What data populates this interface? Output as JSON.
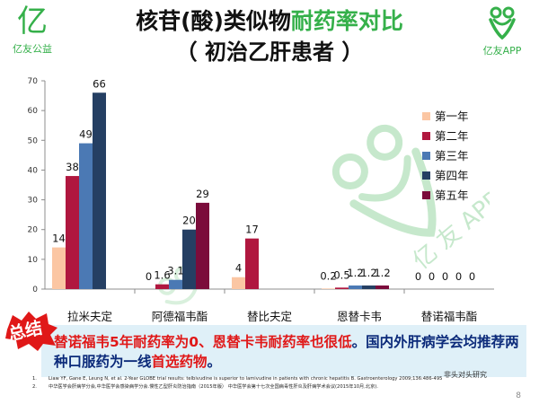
{
  "brand": {
    "left_glyph": "亿",
    "left_name": "亿友公益",
    "right_name": "亿友APP"
  },
  "title": {
    "line1_prefix": "核苷(酸)类似物",
    "line1_highlight": "耐药率对比",
    "line2": "（ 初治乙肝患者 ）"
  },
  "colors": {
    "title_green": "#35b04a",
    "summary_bg": "#dff0f8",
    "summary_text": "#0b2a7a",
    "summary_highlight": "#e01818",
    "badge_red": "#e01818"
  },
  "chart_data": {
    "type": "bar",
    "categories": [
      "拉米夫定",
      "阿德福韦酯",
      "替比夫定",
      "恩替卡韦",
      "替诺福韦酯"
    ],
    "series": [
      {
        "name": "第一年",
        "color": "#fbc6a3",
        "values": [
          14,
          0,
          4,
          0.2,
          0
        ],
        "labels": [
          "14",
          "0",
          "4",
          "0.2",
          "0"
        ]
      },
      {
        "name": "第二年",
        "color": "#b0173f",
        "values": [
          38,
          1.6,
          17,
          0.5,
          0
        ],
        "labels": [
          "38",
          "1.6",
          "17",
          "0.5",
          "0"
        ]
      },
      {
        "name": "第三年",
        "color": "#4b79b4",
        "values": [
          49,
          3.1,
          null,
          1.2,
          0
        ],
        "labels": [
          "49",
          "3.1",
          "",
          "1.2",
          "0"
        ]
      },
      {
        "name": "第四年",
        "color": "#253f63",
        "values": [
          66,
          20,
          null,
          1.2,
          0
        ],
        "labels": [
          "66",
          "20",
          "",
          "1.2",
          "0"
        ]
      },
      {
        "name": "第五年",
        "color": "#7b0c3b",
        "values": [
          null,
          29,
          null,
          1.2,
          0
        ],
        "labels": [
          "",
          "29",
          "",
          "1.2",
          "0"
        ]
      }
    ],
    "y_ticks": [
      "0",
      "10",
      "20",
      "30",
      "40",
      "50",
      "60",
      "70"
    ],
    "ylim": [
      0,
      70
    ],
    "grid": false,
    "legend_position": "right"
  },
  "summary": {
    "badge": "总结",
    "highlight": "替诺福韦5年耐药率为0、恩替卡韦耐药率也很低",
    "text1": "。国内外肝病学会均推荐两种口服药为一线",
    "highlight2": "首选药物",
    "text2": "。"
  },
  "references": [
    {
      "n": "1.",
      "text": "Liaw YF, Gane E, Leung N, et al. 2-Year GLOBE trial results: telbivudine is superior to lamivudine in patients with chronic hepatitis B. Gastroenterology 2009;136:486-495"
    },
    {
      "n": "2.",
      "text": "中华医学会肝病学分会,中华医学会感染病学分会.慢性乙型肝炎防治指南（2015年版） 中华医学会第十七次全国病毒性肝炎及肝病学术会议(2015年10月,北京)."
    }
  ],
  "tagline": "非头对头研究",
  "page_number": "8"
}
